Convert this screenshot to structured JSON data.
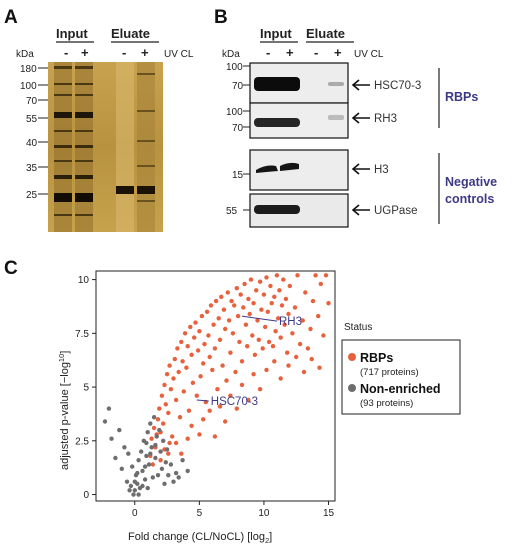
{
  "panels": {
    "A": {
      "letter": "A",
      "headers": [
        "Input",
        "Eluate"
      ],
      "conditions": [
        "-",
        "+",
        "-",
        "+"
      ],
      "kda_label": "kDa",
      "uv_label": "UV CL",
      "markers": [
        "180",
        "100",
        "70",
        "55",
        "40",
        "35",
        "25"
      ]
    },
    "B": {
      "letter": "B",
      "headers": [
        "Input",
        "Eluate"
      ],
      "conditions": [
        "-",
        "+",
        "-",
        "+"
      ],
      "kda_label": "kDa",
      "uv_label": "UV CL",
      "blots": [
        {
          "protein": "HSC70-3",
          "markers": [
            "100",
            "70"
          ]
        },
        {
          "protein": "RH3",
          "markers": [
            "100",
            "70"
          ]
        },
        {
          "protein": "H3",
          "markers": [
            "15"
          ]
        },
        {
          "protein": "UGPase",
          "markers": [
            "55"
          ]
        }
      ],
      "groups": [
        "RBPs",
        "Negative controls"
      ]
    },
    "C": {
      "letter": "C"
    }
  },
  "chart_data": {
    "type": "scatter",
    "xlabel": "Fold change (CL/NoCL) [log",
    "xlabel_sub": "2",
    "xlabel_end": "]",
    "ylabel": "adjusted p-value [−log",
    "ylabel_sub": "10",
    "ylabel_end": "]",
    "xlim": [
      -3,
      15.5
    ],
    "ylim": [
      -0.3,
      10.4
    ],
    "xticks": [
      "0",
      "5",
      "10",
      "15"
    ],
    "yticks": [
      "0",
      "2.5",
      "5",
      "7.5",
      "10"
    ],
    "legend": {
      "title": "Status",
      "placement": "right",
      "entries": [
        {
          "label": "RBPs",
          "count": "(717 proteins)",
          "color": "#e8603c"
        },
        {
          "label": "Non-enriched",
          "count": "(93 proteins)",
          "color": "#6e6e6e"
        }
      ]
    },
    "annotations": [
      {
        "label": "RH3",
        "x": 8.3,
        "y": 8.3
      },
      {
        "label": "HSC70-3",
        "x": 4.8,
        "y": 4.4
      }
    ],
    "series": [
      {
        "name": "RBPs",
        "color": "#e8603c",
        "n": 717,
        "points": [
          [
            1.2,
            1.8
          ],
          [
            1.3,
            2.6
          ],
          [
            1.5,
            3.1
          ],
          [
            1.6,
            2.2
          ],
          [
            1.8,
            3.5
          ],
          [
            1.9,
            4.0
          ],
          [
            2.0,
            2.9
          ],
          [
            2.1,
            4.6
          ],
          [
            2.2,
            3.3
          ],
          [
            2.3,
            5.1
          ],
          [
            2.4,
            4.2
          ],
          [
            2.5,
            5.6
          ],
          [
            2.6,
            3.8
          ],
          [
            2.7,
            6.0
          ],
          [
            2.8,
            4.9
          ],
          [
            2.9,
            2.7
          ],
          [
            3.0,
            5.4
          ],
          [
            3.1,
            6.3
          ],
          [
            3.2,
            4.4
          ],
          [
            3.3,
            6.8
          ],
          [
            3.4,
            5.7
          ],
          [
            3.5,
            3.6
          ],
          [
            3.6,
            7.1
          ],
          [
            3.7,
            6.2
          ],
          [
            3.8,
            4.8
          ],
          [
            3.9,
            7.5
          ],
          [
            4.0,
            5.9
          ],
          [
            4.1,
            6.9
          ],
          [
            4.2,
            3.9
          ],
          [
            4.3,
            7.8
          ],
          [
            4.4,
            6.5
          ],
          [
            4.5,
            5.2
          ],
          [
            4.6,
            7.3
          ],
          [
            4.7,
            8.0
          ],
          [
            4.8,
            4.6
          ],
          [
            4.9,
            6.7
          ],
          [
            5.0,
            7.6
          ],
          [
            5.1,
            5.5
          ],
          [
            5.2,
            8.3
          ],
          [
            5.3,
            6.1
          ],
          [
            5.4,
            7.0
          ],
          [
            5.5,
            4.3
          ],
          [
            5.6,
            8.5
          ],
          [
            5.7,
            7.4
          ],
          [
            5.8,
            6.4
          ],
          [
            5.9,
            8.8
          ],
          [
            6.0,
            5.8
          ],
          [
            6.1,
            7.9
          ],
          [
            6.2,
            6.8
          ],
          [
            6.3,
            9.0
          ],
          [
            6.4,
            4.9
          ],
          [
            6.5,
            8.2
          ],
          [
            6.6,
            7.2
          ],
          [
            6.7,
            9.2
          ],
          [
            6.8,
            6.0
          ],
          [
            6.9,
            8.6
          ],
          [
            7.0,
            7.7
          ],
          [
            7.1,
            5.3
          ],
          [
            7.2,
            9.4
          ],
          [
            7.3,
            8.1
          ],
          [
            7.4,
            6.6
          ],
          [
            7.5,
            9.0
          ],
          [
            7.6,
            7.5
          ],
          [
            7.7,
            8.8
          ],
          [
            7.8,
            5.7
          ],
          [
            7.9,
            9.6
          ],
          [
            8.0,
            8.3
          ],
          [
            8.1,
            7.1
          ],
          [
            8.2,
            9.3
          ],
          [
            8.3,
            6.2
          ],
          [
            8.4,
            8.7
          ],
          [
            8.5,
            9.8
          ],
          [
            8.6,
            7.9
          ],
          [
            8.7,
            6.9
          ],
          [
            8.8,
            9.1
          ],
          [
            8.9,
            8.4
          ],
          [
            9.0,
            10.0
          ],
          [
            9.1,
            7.4
          ],
          [
            9.2,
            8.9
          ],
          [
            9.3,
            6.5
          ],
          [
            9.4,
            9.5
          ],
          [
            9.5,
            8.1
          ],
          [
            9.6,
            7.2
          ],
          [
            9.7,
            9.9
          ],
          [
            9.8,
            8.6
          ],
          [
            9.9,
            6.8
          ],
          [
            10.0,
            9.3
          ],
          [
            10.1,
            7.8
          ],
          [
            10.2,
            10.1
          ],
          [
            10.3,
            8.5
          ],
          [
            10.4,
            7.1
          ],
          [
            10.5,
            9.7
          ],
          [
            10.6,
            8.9
          ],
          [
            10.7,
            6.9
          ],
          [
            10.8,
            9.2
          ],
          [
            10.9,
            7.6
          ],
          [
            11.0,
            10.2
          ],
          [
            11.1,
            8.2
          ],
          [
            11.2,
            9.5
          ],
          [
            11.3,
            7.3
          ],
          [
            11.4,
            8.8
          ],
          [
            11.5,
            10.0
          ],
          [
            11.6,
            7.9
          ],
          [
            11.7,
            9.1
          ],
          [
            11.8,
            6.6
          ],
          [
            11.9,
            8.4
          ],
          [
            12.0,
            9.7
          ],
          [
            12.2,
            7.5
          ],
          [
            12.4,
            8.7
          ],
          [
            12.6,
            10.2
          ],
          [
            12.8,
            7.0
          ],
          [
            13.0,
            8.1
          ],
          [
            13.2,
            9.4
          ],
          [
            13.4,
            6.8
          ],
          [
            13.6,
            7.7
          ],
          [
            13.8,
            9.0
          ],
          [
            14.0,
            10.2
          ],
          [
            14.2,
            8.3
          ],
          [
            14.4,
            9.8
          ],
          [
            14.6,
            7.4
          ],
          [
            14.8,
            10.2
          ],
          [
            15.0,
            8.9
          ],
          [
            3.2,
            2.4
          ],
          [
            3.6,
            1.9
          ],
          [
            4.1,
            2.6
          ],
          [
            4.4,
            3.2
          ],
          [
            5.0,
            2.8
          ],
          [
            5.3,
            3.5
          ],
          [
            5.8,
            3.9
          ],
          [
            6.2,
            2.7
          ],
          [
            6.6,
            4.1
          ],
          [
            7.0,
            3.4
          ],
          [
            7.4,
            4.6
          ],
          [
            7.9,
            4.0
          ],
          [
            8.3,
            5.1
          ],
          [
            8.8,
            4.4
          ],
          [
            9.2,
            5.6
          ],
          [
            9.7,
            4.9
          ],
          [
            10.2,
            5.8
          ],
          [
            10.8,
            6.2
          ],
          [
            11.3,
            5.4
          ],
          [
            11.9,
            6.0
          ],
          [
            12.5,
            6.4
          ],
          [
            13.1,
            5.7
          ],
          [
            13.7,
            6.3
          ],
          [
            14.3,
            5.9
          ],
          [
            2.3,
            2.1
          ],
          [
            2.7,
            2.4
          ],
          [
            1.7,
            2.8
          ],
          [
            1.4,
            1.4
          ],
          [
            2.0,
            1.6
          ],
          [
            2.6,
            1.9
          ]
        ]
      },
      {
        "name": "Non-enriched",
        "color": "#6e6e6e",
        "n": 93,
        "points": [
          [
            -2.3,
            3.4
          ],
          [
            -2.0,
            4.0
          ],
          [
            -1.8,
            2.6
          ],
          [
            -1.5,
            1.7
          ],
          [
            -1.2,
            3.0
          ],
          [
            -1.0,
            1.2
          ],
          [
            -0.8,
            2.2
          ],
          [
            -0.6,
            0.6
          ],
          [
            -0.5,
            1.9
          ],
          [
            -0.3,
            0.4
          ],
          [
            -0.2,
            1.3
          ],
          [
            0.0,
            0.2
          ],
          [
            0.1,
            0.9
          ],
          [
            0.2,
            0.5
          ],
          [
            0.3,
            1.6
          ],
          [
            0.4,
            0.3
          ],
          [
            0.5,
            2.0
          ],
          [
            0.6,
            1.1
          ],
          [
            0.7,
            2.5
          ],
          [
            0.8,
            0.7
          ],
          [
            0.9,
            1.8
          ],
          [
            1.0,
            2.9
          ],
          [
            1.1,
            1.4
          ],
          [
            1.2,
            3.3
          ],
          [
            1.3,
            2.2
          ],
          [
            1.4,
            0.8
          ],
          [
            1.5,
            3.6
          ],
          [
            1.6,
            1.7
          ],
          [
            1.7,
            2.7
          ],
          [
            1.8,
            0.9
          ],
          [
            1.9,
            3.0
          ],
          [
            2.0,
            2.0
          ],
          [
            2.1,
            1.2
          ],
          [
            2.2,
            2.5
          ],
          [
            2.3,
            0.5
          ],
          [
            2.4,
            1.5
          ],
          [
            2.6,
            0.9
          ],
          [
            2.8,
            1.4
          ],
          [
            3.0,
            0.6
          ],
          [
            3.2,
            1.0
          ],
          [
            3.4,
            0.8
          ],
          [
            3.7,
            1.6
          ],
          [
            4.1,
            1.1
          ],
          [
            -0.1,
            0.0
          ],
          [
            0.0,
            0.6
          ],
          [
            0.2,
            1.0
          ],
          [
            -0.4,
            0.2
          ],
          [
            0.6,
            0.4
          ],
          [
            1.0,
            0.3
          ],
          [
            0.8,
            1.3
          ],
          [
            1.6,
            2.3
          ],
          [
            0.9,
            2.4
          ],
          [
            1.2,
            1.9
          ],
          [
            2.5,
            2.1
          ],
          [
            0.3,
            0.0
          ]
        ]
      }
    ]
  }
}
